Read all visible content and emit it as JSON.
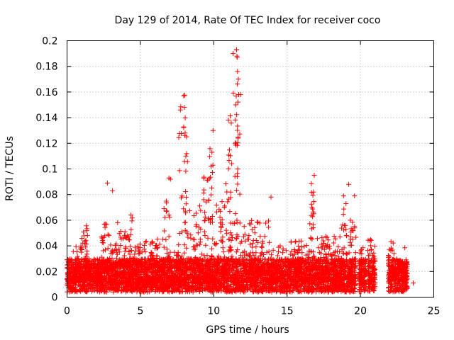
{
  "chart_data": {
    "type": "scatter",
    "title": "Day 129 of 2014, Rate Of TEC Index for receiver coco",
    "xlabel": "GPS time / hours",
    "ylabel": "ROTI / TECUs",
    "xlim": [
      0,
      25
    ],
    "ylim": [
      0,
      0.2
    ],
    "xticks": [
      0,
      5,
      10,
      15,
      20,
      25
    ],
    "yticks": [
      0,
      0.02,
      0.04,
      0.06,
      0.08,
      0.1,
      0.12,
      0.14,
      0.16,
      0.18,
      0.2
    ],
    "grid": true,
    "marker": "+",
    "color": "#ff0000",
    "segments": [
      {
        "x0": 0.0,
        "x1": 0.35,
        "peak": 0.03
      },
      {
        "x0": 0.35,
        "x1": 1.0,
        "peak": 0.04
      },
      {
        "x0": 1.0,
        "x1": 1.4,
        "peak": 0.059
      },
      {
        "x0": 1.4,
        "x1": 2.3,
        "peak": 0.028
      },
      {
        "x0": 2.3,
        "x1": 2.9,
        "peak": 0.06
      },
      {
        "x0": 2.9,
        "x1": 3.3,
        "peak": 0.045
      },
      {
        "x0": 3.3,
        "x1": 3.6,
        "peak": 0.064
      },
      {
        "x0": 3.6,
        "x1": 4.2,
        "peak": 0.052
      },
      {
        "x0": 4.2,
        "x1": 4.5,
        "peak": 0.065
      },
      {
        "x0": 4.5,
        "x1": 5.6,
        "peak": 0.044
      },
      {
        "x0": 5.6,
        "x1": 6.6,
        "peak": 0.048
      },
      {
        "x0": 6.6,
        "x1": 7.0,
        "peak": 0.075
      },
      {
        "x0": 7.0,
        "x1": 7.6,
        "peak": 0.035
      },
      {
        "x0": 7.6,
        "x1": 8.3,
        "peak": 0.158
      },
      {
        "x0": 8.3,
        "x1": 9.2,
        "peak": 0.072
      },
      {
        "x0": 9.2,
        "x1": 9.6,
        "peak": 0.1
      },
      {
        "x0": 9.6,
        "x1": 10.1,
        "peak": 0.12
      },
      {
        "x0": 10.1,
        "x1": 10.8,
        "peak": 0.075
      },
      {
        "x0": 10.8,
        "x1": 11.3,
        "peak": 0.142
      },
      {
        "x0": 11.3,
        "x1": 11.9,
        "peak": 0.194
      },
      {
        "x0": 11.9,
        "x1": 12.8,
        "peak": 0.06
      },
      {
        "x0": 12.8,
        "x1": 13.8,
        "peak": 0.06
      },
      {
        "x0": 13.8,
        "x1": 15.0,
        "peak": 0.04
      },
      {
        "x0": 15.0,
        "x1": 16.5,
        "peak": 0.045
      },
      {
        "x0": 16.5,
        "x1": 16.9,
        "peak": 0.095
      },
      {
        "x0": 16.9,
        "x1": 18.7,
        "peak": 0.048
      },
      {
        "x0": 18.7,
        "x1": 19.1,
        "peak": 0.08
      },
      {
        "x0": 19.1,
        "x1": 19.7,
        "peak": 0.06
      },
      {
        "x0": 19.9,
        "x1": 20.4,
        "peak": 0.04
      },
      {
        "x0": 20.5,
        "x1": 21.0,
        "peak": 0.045
      },
      {
        "x0": 21.9,
        "x1": 22.4,
        "peak": 0.044
      },
      {
        "x0": 22.4,
        "x1": 22.9,
        "peak": 0.03
      },
      {
        "x0": 22.9,
        "x1": 23.2,
        "peak": 0.04
      }
    ],
    "outliers": [
      {
        "x": 2.75,
        "y": 0.089
      },
      {
        "x": 3.1,
        "y": 0.083
      },
      {
        "x": 6.95,
        "y": 0.093
      },
      {
        "x": 7.05,
        "y": 0.092
      },
      {
        "x": 7.95,
        "y": 0.157
      },
      {
        "x": 8.0,
        "y": 0.148
      },
      {
        "x": 8.05,
        "y": 0.128
      },
      {
        "x": 8.1,
        "y": 0.11
      },
      {
        "x": 9.95,
        "y": 0.13
      },
      {
        "x": 11.55,
        "y": 0.193
      },
      {
        "x": 11.6,
        "y": 0.187
      },
      {
        "x": 11.62,
        "y": 0.176
      },
      {
        "x": 11.68,
        "y": 0.17
      },
      {
        "x": 11.7,
        "y": 0.158
      },
      {
        "x": 11.5,
        "y": 0.15
      },
      {
        "x": 11.0,
        "y": 0.138
      },
      {
        "x": 16.85,
        "y": 0.095
      },
      {
        "x": 16.8,
        "y": 0.082
      },
      {
        "x": 18.85,
        "y": 0.079
      },
      {
        "x": 19.2,
        "y": 0.088
      },
      {
        "x": 19.6,
        "y": 0.079
      },
      {
        "x": 13.9,
        "y": 0.078
      },
      {
        "x": 12.4,
        "y": 0.048
      },
      {
        "x": 23.6,
        "y": 0.011
      }
    ]
  }
}
